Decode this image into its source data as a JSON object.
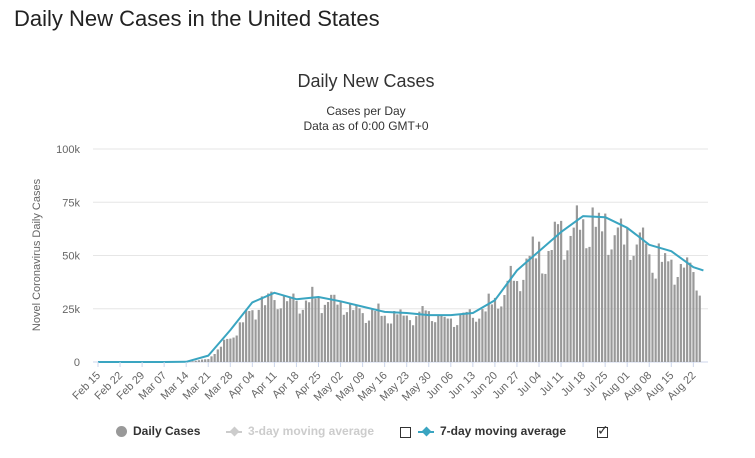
{
  "page": {
    "title": "Daily New Cases in the United States"
  },
  "chart_data": {
    "type": "bar",
    "title": "Daily New Cases",
    "subtitle_line1": "Cases per Day",
    "subtitle_line2": "Data as of 0:00 GMT+0",
    "ylabel": "Novel Coronavirus Daily Cases",
    "ylim": [
      0,
      100000
    ],
    "y_ticks": [
      {
        "value": 0,
        "label": "0"
      },
      {
        "value": 25000,
        "label": "25k"
      },
      {
        "value": 50000,
        "label": "50k"
      },
      {
        "value": 75000,
        "label": "75k"
      },
      {
        "value": 100000,
        "label": "100k"
      }
    ],
    "x_ticks": [
      "Feb 15",
      "Feb 22",
      "Feb 29",
      "Mar 07",
      "Mar 14",
      "Mar 21",
      "Mar 28",
      "Apr 04",
      "Apr 11",
      "Apr 18",
      "Apr 25",
      "May 02",
      "May 09",
      "May 16",
      "May 23",
      "May 30",
      "Jun 06",
      "Jun 13",
      "Jun 20",
      "Jun 27",
      "Jul 04",
      "Jul 11",
      "Jul 18",
      "Jul 25",
      "Aug 01",
      "Aug 08",
      "Aug 15",
      "Aug 22"
    ],
    "grid": true,
    "colors": {
      "bars": "#999999",
      "moving_average": "#3aa5c1"
    },
    "daily_cases_weekly_anchors": [
      0,
      0,
      0,
      0,
      0,
      1500,
      12000,
      26000,
      31000,
      29000,
      31000,
      28000,
      25000,
      22000,
      23000,
      22000,
      21000,
      23000,
      28000,
      42000,
      53000,
      62000,
      69000,
      68000,
      60000,
      53000,
      50000,
      42000,
      39000
    ],
    "moving_average_weekly": [
      0,
      0,
      0,
      0,
      100,
      3000,
      15000,
      28000,
      32500,
      29500,
      30500,
      28500,
      26000,
      23500,
      23000,
      22000,
      22000,
      23000,
      29000,
      43000,
      52000,
      61000,
      68500,
      68000,
      63000,
      55000,
      52000,
      44500,
      43000
    ],
    "legend": {
      "daily_cases": "Daily Cases",
      "three_day": "3-day moving average",
      "seven_day": "7-day moving average",
      "three_day_checked": false,
      "seven_day_checked": true,
      "check_mark": "✓"
    }
  }
}
